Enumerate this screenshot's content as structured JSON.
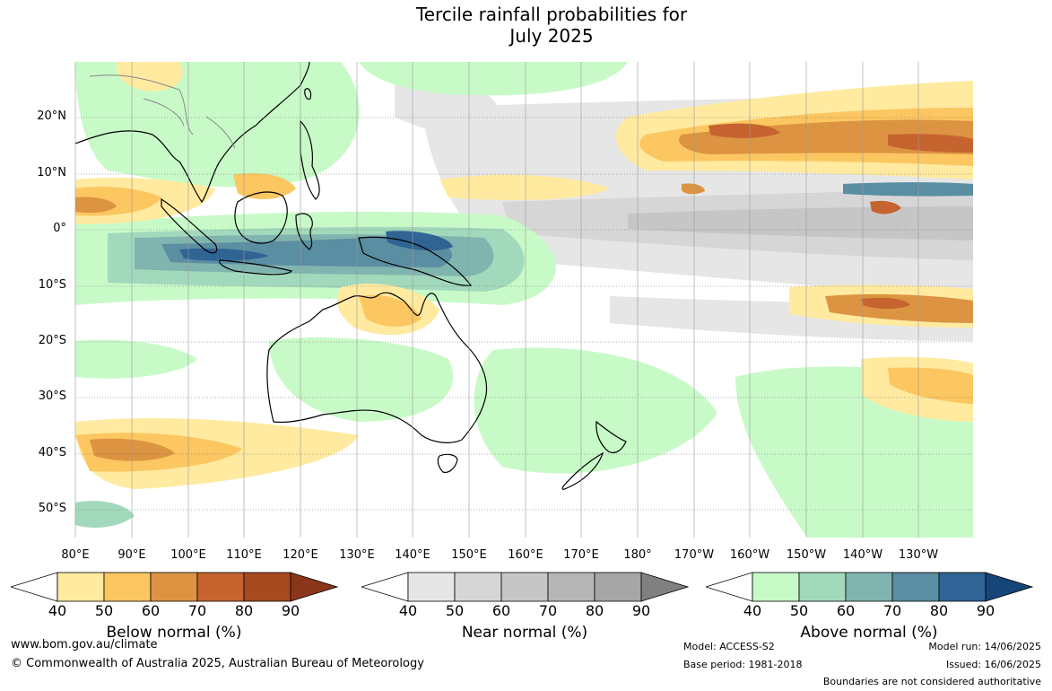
{
  "title": {
    "line1": "Tercile rainfall probabilities for",
    "line2": "July 2025"
  },
  "map": {
    "lat_labels": [
      "20°N",
      "10°N",
      "0°",
      "10°S",
      "20°S",
      "30°S",
      "40°S",
      "50°S"
    ],
    "lon_labels": [
      "80°E",
      "90°E",
      "100°E",
      "110°E",
      "120°E",
      "130°E",
      "140°E",
      "150°E",
      "160°E",
      "170°E",
      "180°",
      "170°W",
      "160°W",
      "150°W",
      "140°W",
      "130°W"
    ]
  },
  "colorbars": [
    {
      "title": "Below normal (%)",
      "ticks": [
        "40",
        "50",
        "60",
        "70",
        "80",
        "90"
      ],
      "colors": [
        "#ffeaa0",
        "#fcc660",
        "#dc9442",
        "#c66430",
        "#a84a20",
        "#8a361a"
      ]
    },
    {
      "title": "Near normal (%)",
      "ticks": [
        "40",
        "50",
        "60",
        "70",
        "80",
        "90"
      ],
      "colors": [
        "#e6e6e6",
        "#d6d6d6",
        "#c6c6c6",
        "#b6b6b6",
        "#a6a6a6",
        "#808080"
      ]
    },
    {
      "title": "Above normal (%)",
      "ticks": [
        "40",
        "50",
        "60",
        "70",
        "80",
        "90"
      ],
      "colors": [
        "#c8fac8",
        "#a2d9bc",
        "#80b4ae",
        "#5a8ea2",
        "#2f6494",
        "#164678"
      ]
    }
  ],
  "footer": {
    "website": "www.bom.gov.au/climate",
    "copyright": "© Commonwealth of Australia 2025, Australian Bureau of Meteorology",
    "model": "Model: ACCESS-S2",
    "base_period": "Base period: 1981-2018",
    "model_run": "Model run: 14/06/2025",
    "issued": "Issued: 16/06/2025",
    "disclaimer": "Boundaries are not considered authoritative"
  }
}
